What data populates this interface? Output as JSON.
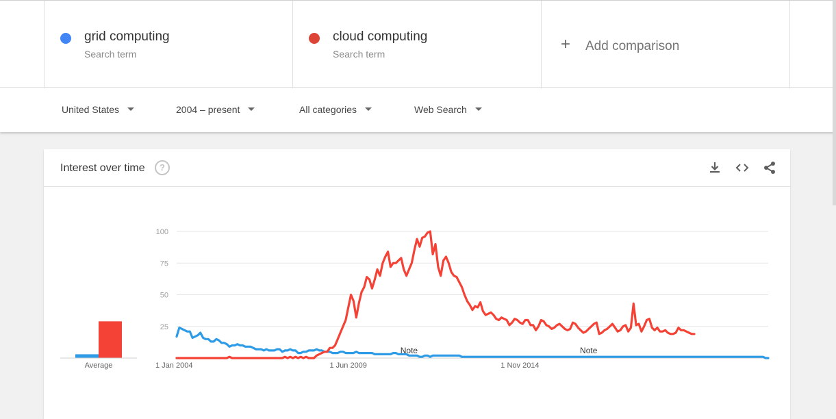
{
  "terms": [
    {
      "name": "grid computing",
      "sub": "Search term",
      "color": "#4285f4"
    },
    {
      "name": "cloud computing",
      "sub": "Search term",
      "color": "#db4437"
    }
  ],
  "add_comparison": {
    "label": "Add comparison"
  },
  "filters": {
    "region": "United States",
    "time": "2004 – present",
    "category": "All categories",
    "search_type": "Web Search"
  },
  "card": {
    "title": "Interest over time",
    "icons": [
      "download-icon",
      "embed-code-icon",
      "share-icon"
    ]
  },
  "chart_data": {
    "type": "line",
    "title": "",
    "ylim": [
      0,
      100
    ],
    "yticks": [
      25,
      50,
      75,
      100
    ],
    "xtick_labels": [
      "1 Jan 2004",
      "1 Jun 2009",
      "1 Nov 2014"
    ],
    "notes": [
      "Note",
      "Note"
    ],
    "average_label": "Average",
    "grid": true,
    "series": [
      {
        "name": "grid computing",
        "color": "#2e9be6",
        "average": 3,
        "values": [
          17,
          24,
          23,
          22,
          21,
          21,
          16,
          17,
          18,
          20,
          16,
          15,
          15,
          13,
          13,
          15,
          14,
          12,
          12,
          11,
          9,
          10,
          10,
          11,
          10,
          10,
          9,
          9,
          9,
          8,
          7,
          7,
          7,
          6,
          7,
          6,
          6,
          6,
          7,
          7,
          5,
          6,
          6,
          7,
          6,
          6,
          4,
          4,
          5,
          5,
          6,
          6,
          6,
          7,
          6,
          6,
          5,
          5,
          5,
          4,
          4,
          4,
          5,
          5,
          4,
          4,
          4,
          4,
          5,
          4,
          4,
          4,
          4,
          4,
          4,
          3,
          3,
          3,
          3,
          3,
          3,
          3,
          4,
          4,
          3,
          3,
          3,
          3,
          2,
          2,
          2,
          2,
          1,
          1,
          2,
          2,
          1,
          2,
          2,
          2,
          2,
          2,
          2,
          2,
          2,
          2,
          2,
          2,
          1,
          1,
          1,
          1,
          1,
          1,
          1,
          1,
          1,
          1,
          1,
          1,
          1,
          1,
          1,
          1,
          1,
          1,
          1,
          1,
          1,
          1,
          1,
          1,
          1,
          1,
          1,
          1,
          1,
          1,
          1,
          1,
          1,
          1,
          1,
          1,
          1,
          1,
          1,
          1,
          1,
          1,
          1,
          1,
          1,
          1,
          1,
          1,
          1,
          1,
          1,
          1,
          1,
          1,
          1,
          1,
          1,
          1,
          1,
          1,
          1,
          1,
          1,
          1,
          1,
          1,
          1,
          1,
          1,
          1,
          1,
          1,
          1,
          1,
          1,
          1,
          1,
          1,
          1,
          1,
          1,
          1,
          1,
          1,
          1,
          1,
          1,
          1,
          1,
          1,
          1,
          1,
          1,
          1,
          1,
          1,
          1,
          1,
          1,
          1,
          1,
          1,
          1,
          1,
          1,
          1,
          1,
          1,
          1,
          1,
          1,
          1,
          1,
          1,
          1,
          0,
          0
        ]
      },
      {
        "name": "cloud computing",
        "color": "#f44336",
        "average": 29,
        "values": [
          0,
          0,
          0,
          0,
          0,
          0,
          0,
          0,
          0,
          0,
          0,
          0,
          0,
          0,
          0,
          0,
          0,
          0,
          0,
          0,
          1,
          0,
          0,
          0,
          0,
          0,
          0,
          0,
          0,
          0,
          0,
          0,
          0,
          0,
          0,
          0,
          0,
          0,
          0,
          0,
          0,
          1,
          0,
          1,
          0,
          1,
          0,
          1,
          0,
          1,
          0,
          0,
          0,
          2,
          3,
          4,
          5,
          5,
          8,
          8,
          10,
          15,
          20,
          25,
          30,
          40,
          50,
          45,
          32,
          43,
          52,
          56,
          64,
          62,
          55,
          62,
          70,
          65,
          75,
          80,
          84,
          72,
          75,
          75,
          77,
          79,
          70,
          65,
          70,
          75,
          85,
          94,
          88,
          95,
          96,
          99,
          100,
          82,
          90,
          72,
          65,
          77,
          80,
          75,
          68,
          65,
          64,
          60,
          56,
          50,
          45,
          42,
          38,
          41,
          40,
          44,
          37,
          34,
          35,
          36,
          34,
          31,
          30,
          32,
          31,
          30,
          26,
          28,
          31,
          30,
          28,
          27,
          30,
          30,
          26,
          26,
          22,
          25,
          30,
          29,
          26,
          25,
          23,
          24,
          26,
          27,
          25,
          23,
          22,
          23,
          28,
          27,
          24,
          22,
          20,
          21,
          23,
          25,
          27,
          28,
          19,
          20,
          22,
          23,
          25,
          27,
          24,
          21,
          22,
          25,
          26,
          21,
          24,
          43,
          26,
          27,
          21,
          25,
          30,
          31,
          24,
          22,
          24,
          21,
          21,
          22,
          20,
          19,
          19,
          20,
          24,
          22,
          22,
          21,
          20,
          19,
          19
        ]
      }
    ]
  }
}
